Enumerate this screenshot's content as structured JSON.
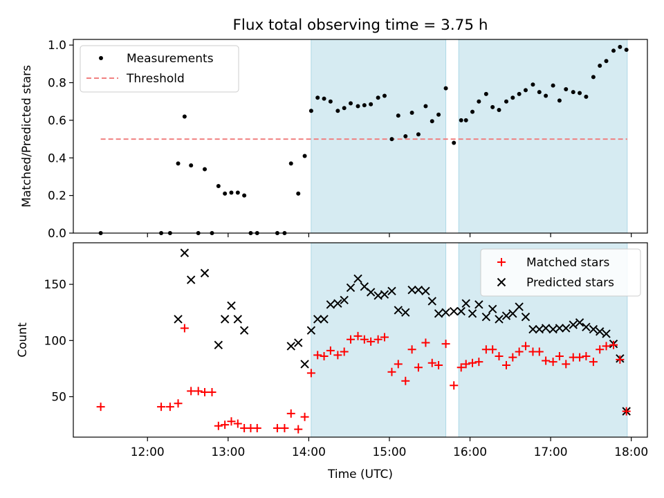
{
  "title": "Flux total observing time = 3.75 h",
  "colors": {
    "band": "#add8e6",
    "measurements": "#000000",
    "threshold": "#f08080",
    "matched": "#ff0000",
    "predicted": "#000000"
  },
  "chart_data": [
    {
      "type": "scatter",
      "ylabel": "Matched/Predicted stars",
      "ylim": [
        0,
        1.03
      ],
      "yticks": [
        0,
        0.2,
        0.4,
        0.6,
        0.8,
        1.0
      ],
      "ytick_labels": [
        "0.0",
        "0.2",
        "0.4",
        "0.6",
        "0.8",
        "1.0"
      ],
      "legend": {
        "position": "top-left",
        "entries": [
          "Measurements",
          "Threshold"
        ]
      },
      "threshold": {
        "value": 0.5,
        "x_range": [
          11.42,
          17.95
        ]
      },
      "series": [
        {
          "name": "Measurements",
          "x": [
            11.42,
            12.17,
            12.28,
            12.38,
            12.46,
            12.54,
            12.63,
            12.71,
            12.8,
            12.88,
            12.96,
            13.04,
            13.12,
            13.2,
            13.28,
            13.36,
            13.61,
            13.7,
            13.78,
            13.87,
            13.95,
            14.03,
            14.11,
            14.19,
            14.27,
            14.36,
            14.44,
            14.52,
            14.61,
            14.69,
            14.77,
            14.86,
            14.94,
            15.03,
            15.11,
            15.2,
            15.28,
            15.36,
            15.45,
            15.53,
            15.61,
            15.7,
            15.8,
            15.89,
            15.95,
            16.03,
            16.11,
            16.2,
            16.28,
            16.36,
            16.45,
            16.53,
            16.61,
            16.69,
            16.78,
            16.86,
            16.94,
            17.03,
            17.11,
            17.19,
            17.28,
            17.36,
            17.44,
            17.53,
            17.61,
            17.69,
            17.78,
            17.86,
            17.94
          ],
          "y": [
            0.0,
            0.0,
            0.0,
            0.37,
            0.62,
            0.36,
            0.0,
            0.34,
            0.0,
            0.25,
            0.21,
            0.215,
            0.215,
            0.2,
            0.0,
            0.0,
            0.0,
            0.0,
            0.37,
            0.21,
            0.41,
            0.65,
            0.72,
            0.715,
            0.7,
            0.65,
            0.665,
            0.69,
            0.675,
            0.68,
            0.685,
            0.72,
            0.73,
            0.5,
            0.625,
            0.515,
            0.64,
            0.525,
            0.675,
            0.595,
            0.63,
            0.77,
            0.48,
            0.6,
            0.6,
            0.645,
            0.7,
            0.74,
            0.67,
            0.655,
            0.7,
            0.72,
            0.74,
            0.76,
            0.79,
            0.75,
            0.73,
            0.785,
            0.705,
            0.765,
            0.75,
            0.745,
            0.725,
            0.83,
            0.89,
            0.915,
            0.97,
            0.99,
            0.975
          ]
        }
      ]
    },
    {
      "type": "scatter",
      "xlabel": "Time (UTC)",
      "ylabel": "Count",
      "xlim": [
        11.08,
        18.2
      ],
      "ylim": [
        14,
        187
      ],
      "xticks": [
        12,
        13,
        14,
        15,
        16,
        17,
        18
      ],
      "xtick_labels": [
        "12:00",
        "13:00",
        "14:00",
        "15:00",
        "16:00",
        "17:00",
        "18:00"
      ],
      "yticks": [
        50,
        100,
        150
      ],
      "ytick_labels": [
        "50",
        "100",
        "150"
      ],
      "legend": {
        "position": "top-right",
        "entries": [
          "Matched stars",
          "Predicted stars"
        ]
      },
      "shaded_intervals": [
        [
          14.03,
          15.7
        ],
        [
          15.86,
          17.95
        ]
      ],
      "series": [
        {
          "name": "Matched stars",
          "x": [
            11.42,
            12.17,
            12.28,
            12.38,
            12.46,
            12.54,
            12.63,
            12.71,
            12.8,
            12.88,
            12.96,
            13.04,
            13.12,
            13.2,
            13.28,
            13.36,
            13.61,
            13.7,
            13.78,
            13.87,
            13.95,
            14.03,
            14.11,
            14.19,
            14.27,
            14.36,
            14.44,
            14.52,
            14.61,
            14.69,
            14.77,
            14.86,
            14.94,
            15.03,
            15.11,
            15.2,
            15.28,
            15.36,
            15.45,
            15.53,
            15.61,
            15.7,
            15.8,
            15.89,
            15.95,
            16.03,
            16.11,
            16.2,
            16.28,
            16.36,
            16.45,
            16.53,
            16.61,
            16.69,
            16.78,
            16.86,
            16.94,
            17.03,
            17.11,
            17.19,
            17.28,
            17.36,
            17.44,
            17.53,
            17.61,
            17.69,
            17.78,
            17.86,
            17.94
          ],
          "y": [
            41,
            41,
            41,
            44,
            111,
            55,
            55,
            54,
            54,
            24,
            25,
            28,
            26,
            22,
            22,
            22,
            22,
            22,
            35,
            21,
            32,
            71,
            87,
            86,
            91,
            87,
            90,
            101,
            104,
            101,
            99,
            101,
            103,
            72,
            79,
            64,
            92,
            76,
            98,
            80,
            78,
            97,
            60,
            76,
            79,
            80,
            81,
            92,
            92,
            86,
            78,
            85,
            90,
            95,
            90,
            90,
            82,
            81,
            86,
            79,
            85,
            85,
            86,
            81,
            92,
            95,
            96,
            83,
            37
          ]
        },
        {
          "name": "Predicted stars",
          "x": [
            12.38,
            12.46,
            12.54,
            12.71,
            12.88,
            12.96,
            13.04,
            13.12,
            13.2,
            13.78,
            13.87,
            13.95,
            14.03,
            14.11,
            14.19,
            14.27,
            14.36,
            14.44,
            14.52,
            14.61,
            14.69,
            14.77,
            14.86,
            14.94,
            15.03,
            15.11,
            15.2,
            15.28,
            15.36,
            15.45,
            15.53,
            15.61,
            15.7,
            15.8,
            15.89,
            15.95,
            16.03,
            16.11,
            16.2,
            16.28,
            16.36,
            16.45,
            16.53,
            16.61,
            16.69,
            16.78,
            16.86,
            16.94,
            17.03,
            17.11,
            17.19,
            17.28,
            17.36,
            17.44,
            17.53,
            17.61,
            17.69,
            17.78,
            17.86,
            17.94
          ],
          "y": [
            119,
            178,
            154,
            160,
            96,
            119,
            131,
            119,
            109,
            95,
            98,
            79,
            109,
            119,
            119,
            132,
            133,
            136,
            147,
            155,
            148,
            143,
            140,
            141,
            144,
            127,
            125,
            145,
            145,
            144,
            135,
            124,
            125,
            126,
            126,
            133,
            124,
            132,
            121,
            128,
            119,
            122,
            124,
            130,
            121,
            110,
            110,
            111,
            110,
            111,
            111,
            114,
            116,
            112,
            110,
            108,
            106,
            97,
            84,
            37
          ]
        }
      ]
    }
  ]
}
